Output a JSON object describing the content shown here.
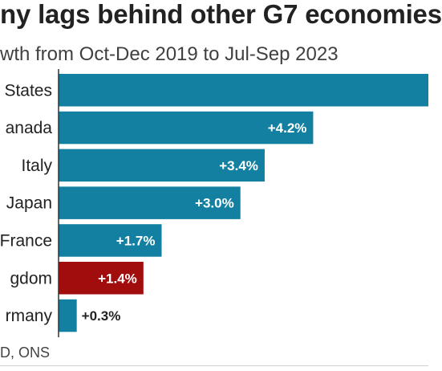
{
  "title": "ny lags behind other G7 economies",
  "subtitle": "wth from Oct-Dec 2019 to Jul-Sep 2023",
  "source": "D, ONS",
  "colors": {
    "bar": "#1380a1",
    "highlight": "#a10d0d",
    "text": "#222222"
  },
  "chart_data": {
    "type": "bar",
    "orientation": "horizontal",
    "categories": [
      "States",
      "anada",
      "Italy",
      "Japan",
      "France",
      "gdom",
      "rmany"
    ],
    "values": [
      6.1,
      4.2,
      3.4,
      3.0,
      1.7,
      1.4,
      0.3
    ],
    "labels": [
      "",
      "+4.2%",
      "+3.4%",
      "+3.0%",
      "+1.7%",
      "+1.4%",
      "+0.3%"
    ],
    "highlight_index": 5,
    "xlim": [
      0,
      6.1
    ],
    "title": "ny lags behind other G7 economies",
    "xlabel": "",
    "ylabel": "",
    "grid": false
  }
}
